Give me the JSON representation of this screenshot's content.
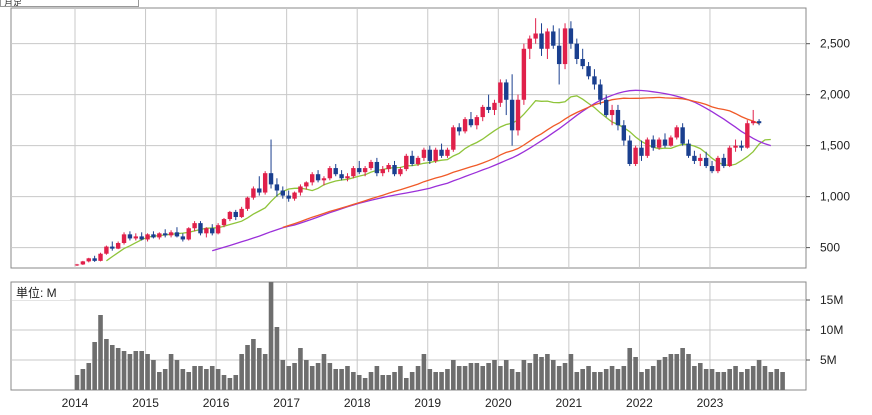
{
  "header_label": "月足",
  "volume_panel": {
    "unit_label": "単位: M"
  },
  "colors": {
    "up": "#e0204a",
    "down": "#1a3f8f",
    "ma_short": "#8fc43a",
    "ma_mid": "#9b30d9",
    "ma_long": "#f05a28",
    "volume": "#6e6e6e",
    "grid": "#c8c8c8"
  },
  "chart_data": [
    {
      "type": "candlestick",
      "title": "",
      "x_tick_labels": [
        "2014",
        "2015",
        "2016",
        "2017",
        "2018",
        "2019",
        "2020",
        "2021",
        "2022",
        "2023"
      ],
      "y_tick_labels": [
        "500",
        "1,000",
        "1,500",
        "2,000",
        "2,500"
      ],
      "y_ticks": [
        500,
        1000,
        1500,
        2000,
        2500
      ],
      "xlim": [
        "2013-11",
        "2023-12"
      ],
      "ylim": [
        300,
        2850
      ],
      "grid": true,
      "start_month": "2014-01",
      "candles": [
        [
          330,
          340,
          320,
          335
        ],
        [
          335,
          370,
          330,
          365
        ],
        [
          365,
          400,
          355,
          395
        ],
        [
          395,
          420,
          360,
          370
        ],
        [
          370,
          450,
          365,
          440
        ],
        [
          440,
          520,
          430,
          510
        ],
        [
          510,
          560,
          470,
          490
        ],
        [
          490,
          560,
          485,
          545
        ],
        [
          545,
          650,
          530,
          630
        ],
        [
          630,
          660,
          570,
          590
        ],
        [
          590,
          640,
          570,
          610
        ],
        [
          610,
          650,
          570,
          580
        ],
        [
          580,
          640,
          560,
          630
        ],
        [
          630,
          660,
          590,
          600
        ],
        [
          600,
          650,
          580,
          640
        ],
        [
          640,
          680,
          600,
          620
        ],
        [
          620,
          670,
          600,
          650
        ],
        [
          650,
          700,
          600,
          610
        ],
        [
          610,
          640,
          560,
          580
        ],
        [
          580,
          700,
          570,
          690
        ],
        [
          690,
          760,
          660,
          740
        ],
        [
          740,
          760,
          620,
          640
        ],
        [
          640,
          700,
          600,
          690
        ],
        [
          690,
          730,
          620,
          640
        ],
        [
          640,
          740,
          630,
          720
        ],
        [
          720,
          790,
          700,
          780
        ],
        [
          780,
          860,
          760,
          850
        ],
        [
          850,
          870,
          770,
          800
        ],
        [
          800,
          900,
          790,
          880
        ],
        [
          880,
          1000,
          860,
          990
        ],
        [
          990,
          1100,
          970,
          1080
        ],
        [
          1080,
          1200,
          1010,
          1040
        ],
        [
          1040,
          1250,
          1020,
          1230
        ],
        [
          1230,
          1560,
          1080,
          1120
        ],
        [
          1120,
          1180,
          1000,
          1060
        ],
        [
          1060,
          1100,
          980,
          1010
        ],
        [
          1010,
          1060,
          950,
          980
        ],
        [
          980,
          1050,
          960,
          1040
        ],
        [
          1040,
          1120,
          1010,
          1100
        ],
        [
          1100,
          1150,
          1070,
          1140
        ],
        [
          1140,
          1240,
          1110,
          1220
        ],
        [
          1220,
          1260,
          1140,
          1160
        ],
        [
          1160,
          1200,
          1110,
          1180
        ],
        [
          1180,
          1300,
          1160,
          1280
        ],
        [
          1280,
          1320,
          1200,
          1220
        ],
        [
          1220,
          1260,
          1160,
          1180
        ],
        [
          1180,
          1230,
          1150,
          1200
        ],
        [
          1200,
          1300,
          1180,
          1280
        ],
        [
          1280,
          1350,
          1220,
          1240
        ],
        [
          1240,
          1300,
          1200,
          1280
        ],
        [
          1280,
          1360,
          1260,
          1340
        ],
        [
          1340,
          1380,
          1200,
          1230
        ],
        [
          1230,
          1300,
          1200,
          1270
        ],
        [
          1270,
          1330,
          1240,
          1310
        ],
        [
          1310,
          1350,
          1200,
          1220
        ],
        [
          1220,
          1290,
          1200,
          1270
        ],
        [
          1270,
          1420,
          1250,
          1400
        ],
        [
          1400,
          1450,
          1300,
          1320
        ],
        [
          1320,
          1400,
          1300,
          1380
        ],
        [
          1380,
          1480,
          1350,
          1460
        ],
        [
          1460,
          1500,
          1320,
          1350
        ],
        [
          1350,
          1480,
          1330,
          1460
        ],
        [
          1460,
          1520,
          1380,
          1400
        ],
        [
          1400,
          1480,
          1380,
          1460
        ],
        [
          1460,
          1700,
          1440,
          1680
        ],
        [
          1680,
          1720,
          1600,
          1640
        ],
        [
          1640,
          1780,
          1620,
          1760
        ],
        [
          1760,
          1830,
          1680,
          1700
        ],
        [
          1700,
          1800,
          1660,
          1780
        ],
        [
          1780,
          1900,
          1740,
          1880
        ],
        [
          1880,
          2000,
          1820,
          1850
        ],
        [
          1850,
          1950,
          1800,
          1920
        ],
        [
          1920,
          2150,
          1880,
          2120
        ],
        [
          2120,
          2150,
          1800,
          1950
        ],
        [
          1950,
          2200,
          1500,
          1650
        ],
        [
          1650,
          2000,
          1600,
          1950
        ],
        [
          1950,
          2500,
          1900,
          2450
        ],
        [
          2450,
          2580,
          2350,
          2550
        ],
        [
          2550,
          2750,
          2500,
          2600
        ],
        [
          2600,
          2700,
          2380,
          2450
        ],
        [
          2450,
          2650,
          2350,
          2620
        ],
        [
          2620,
          2680,
          2450,
          2480
        ],
        [
          2480,
          2650,
          2100,
          2300
        ],
        [
          2300,
          2700,
          2250,
          2650
        ],
        [
          2650,
          2720,
          2450,
          2500
        ],
        [
          2500,
          2550,
          2300,
          2350
        ],
        [
          2350,
          2450,
          2250,
          2280
        ],
        [
          2280,
          2320,
          2150,
          2180
        ],
        [
          2180,
          2250,
          2050,
          2100
        ],
        [
          2100,
          2150,
          1900,
          1950
        ],
        [
          1950,
          2000,
          1780,
          1800
        ],
        [
          1800,
          1900,
          1700,
          1850
        ],
        [
          1850,
          1900,
          1650,
          1700
        ],
        [
          1700,
          1750,
          1500,
          1550
        ],
        [
          1550,
          1600,
          1300,
          1320
        ],
        [
          1320,
          1500,
          1300,
          1480
        ],
        [
          1480,
          1550,
          1350,
          1400
        ],
        [
          1400,
          1580,
          1380,
          1560
        ],
        [
          1560,
          1600,
          1450,
          1480
        ],
        [
          1480,
          1580,
          1460,
          1560
        ],
        [
          1560,
          1620,
          1480,
          1500
        ],
        [
          1500,
          1600,
          1490,
          1580
        ],
        [
          1580,
          1700,
          1560,
          1680
        ],
        [
          1680,
          1720,
          1500,
          1520
        ],
        [
          1520,
          1560,
          1380,
          1400
        ],
        [
          1400,
          1450,
          1320,
          1350
        ],
        [
          1350,
          1420,
          1300,
          1380
        ],
        [
          1380,
          1440,
          1280,
          1300
        ],
        [
          1300,
          1350,
          1230,
          1250
        ],
        [
          1250,
          1400,
          1230,
          1380
        ],
        [
          1380,
          1420,
          1280,
          1300
        ],
        [
          1300,
          1500,
          1290,
          1480
        ],
        [
          1480,
          1560,
          1440,
          1500
        ],
        [
          1500,
          1550,
          1450,
          1480
        ],
        [
          1480,
          1750,
          1470,
          1720
        ],
        [
          1720,
          1850,
          1700,
          1740
        ],
        [
          1740,
          1760,
          1700,
          1720
        ]
      ],
      "series": [
        {
          "role": "ma_short",
          "values": [
            null,
            null,
            null,
            null,
            null,
            371,
            412,
            451,
            490,
            518,
            548,
            578,
            602,
            613,
            618,
            625,
            630,
            637,
            642,
            650,
            664,
            678,
            690,
            692,
            695,
            709,
            727,
            742,
            759,
            791,
            829,
            859,
            890,
            953,
            1010,
            1050,
            1075,
            1082,
            1083,
            1074,
            1059,
            1082,
            1117,
            1136,
            1153,
            1163,
            1170,
            1186,
            1201,
            1214,
            1241,
            1257,
            1266,
            1279,
            1285,
            1286,
            1302,
            1304,
            1314,
            1327,
            1335,
            1347,
            1357,
            1363,
            1398,
            1425,
            1472,
            1505,
            1531,
            1564,
            1606,
            1647,
            1683,
            1707,
            1719,
            1752,
            1808,
            1874,
            1941,
            1935,
            1937,
            1923,
            1921,
            1930,
            1978,
            1989,
            1956,
            1913,
            1874,
            1822,
            1776,
            1732,
            1707,
            1676,
            1637,
            1585,
            1542,
            1509,
            1485,
            1470,
            1476,
            1473,
            1496,
            1513,
            1511,
            1496,
            1471,
            1427,
            1377,
            1336,
            1312,
            1305,
            1318,
            1352,
            1392,
            1441,
            1515,
            1556,
            1560
          ]
        },
        {
          "role": "ma_mid",
          "values": [
            null,
            null,
            null,
            null,
            null,
            null,
            null,
            null,
            null,
            null,
            null,
            null,
            null,
            null,
            null,
            null,
            null,
            null,
            null,
            null,
            null,
            null,
            null,
            470,
            486,
            503,
            521,
            539,
            557,
            575,
            594,
            613,
            634,
            656,
            675,
            694,
            709,
            722,
            740,
            760,
            780,
            800,
            822,
            842,
            862,
            881,
            900,
            918,
            935,
            950,
            964,
            978,
            991,
            1004,
            1015,
            1026,
            1036,
            1046,
            1057,
            1070,
            1083,
            1100,
            1116,
            1132,
            1154,
            1175,
            1197,
            1219,
            1240,
            1262,
            1283,
            1306,
            1331,
            1356,
            1380,
            1408,
            1441,
            1475,
            1511,
            1549,
            1587,
            1627,
            1666,
            1708,
            1753,
            1798,
            1838,
            1876,
            1912,
            1945,
            1971,
            1994,
            2014,
            2029,
            2039,
            2043,
            2041,
            2036,
            2028,
            2020,
            2010,
            1999,
            1985,
            1968,
            1949,
            1927,
            1898,
            1866,
            1833,
            1797,
            1760,
            1720,
            1681,
            1640,
            1605,
            1571,
            1542,
            1518,
            1500
          ]
        },
        {
          "role": "ma_long",
          "values": [
            null,
            null,
            null,
            null,
            null,
            null,
            null,
            null,
            null,
            null,
            null,
            null,
            null,
            null,
            null,
            null,
            null,
            null,
            null,
            null,
            null,
            null,
            null,
            null,
            null,
            null,
            null,
            null,
            null,
            null,
            null,
            null,
            null,
            null,
            null,
            null,
            null,
            null,
            null,
            null,
            null,
            null,
            null,
            null,
            null,
            null,
            null,
            null,
            null,
            null,
            null,
            null,
            null,
            null,
            null,
            null,
            null,
            null,
            null,
            null,
            null,
            null,
            null,
            null,
            null,
            null,
            null,
            null,
            null,
            null,
            null,
            null,
            null,
            null,
            null,
            null,
            null,
            null,
            null,
            null,
            null,
            null,
            null,
            null,
            null,
            null,
            null,
            null,
            null,
            null,
            null,
            null,
            null,
            null,
            null,
            null,
            null,
            null,
            null,
            null,
            null,
            null,
            null,
            null,
            null,
            null,
            null,
            null,
            null,
            null,
            null,
            null,
            null,
            null,
            null,
            null,
            null,
            null,
            null
          ]
        }
      ]
    },
    {
      "type": "bar",
      "title": "",
      "y_tick_labels": [
        "5M",
        "10M",
        "15M"
      ],
      "y_ticks": [
        5,
        10,
        15
      ],
      "ylim": [
        0,
        18
      ],
      "values": [
        2.5,
        3.5,
        4.5,
        8,
        12.5,
        8.5,
        7.5,
        7,
        6.5,
        6,
        6.5,
        6.5,
        6,
        5,
        3,
        3.5,
        6,
        5,
        3.5,
        3,
        4,
        4,
        3.5,
        4,
        3.5,
        2.5,
        2,
        2.5,
        6,
        7.5,
        8.5,
        7,
        6,
        18,
        10.5,
        5,
        4,
        4.5,
        7,
        5,
        4,
        4.5,
        6,
        4.5,
        3.5,
        3.5,
        4,
        3,
        2.5,
        2,
        3,
        4,
        2.5,
        2.5,
        3,
        4,
        2,
        3,
        4,
        6,
        3.5,
        3,
        3,
        3.5,
        5,
        4,
        4,
        4.5,
        4.5,
        4,
        4.5,
        5,
        4,
        5,
        3.5,
        3,
        5,
        4.5,
        6,
        5.5,
        6,
        5,
        4,
        4.5,
        6,
        3,
        3.5,
        4,
        3,
        3,
        3.5,
        4,
        3.5,
        4,
        7,
        5.5,
        3,
        3.5,
        4,
        5,
        5.5,
        6,
        6,
        7,
        6,
        4,
        4.5,
        3.5,
        3.5,
        3,
        3,
        3.5,
        4,
        3,
        3.5,
        4,
        5,
        4,
        3,
        3.5,
        3
      ]
    }
  ]
}
